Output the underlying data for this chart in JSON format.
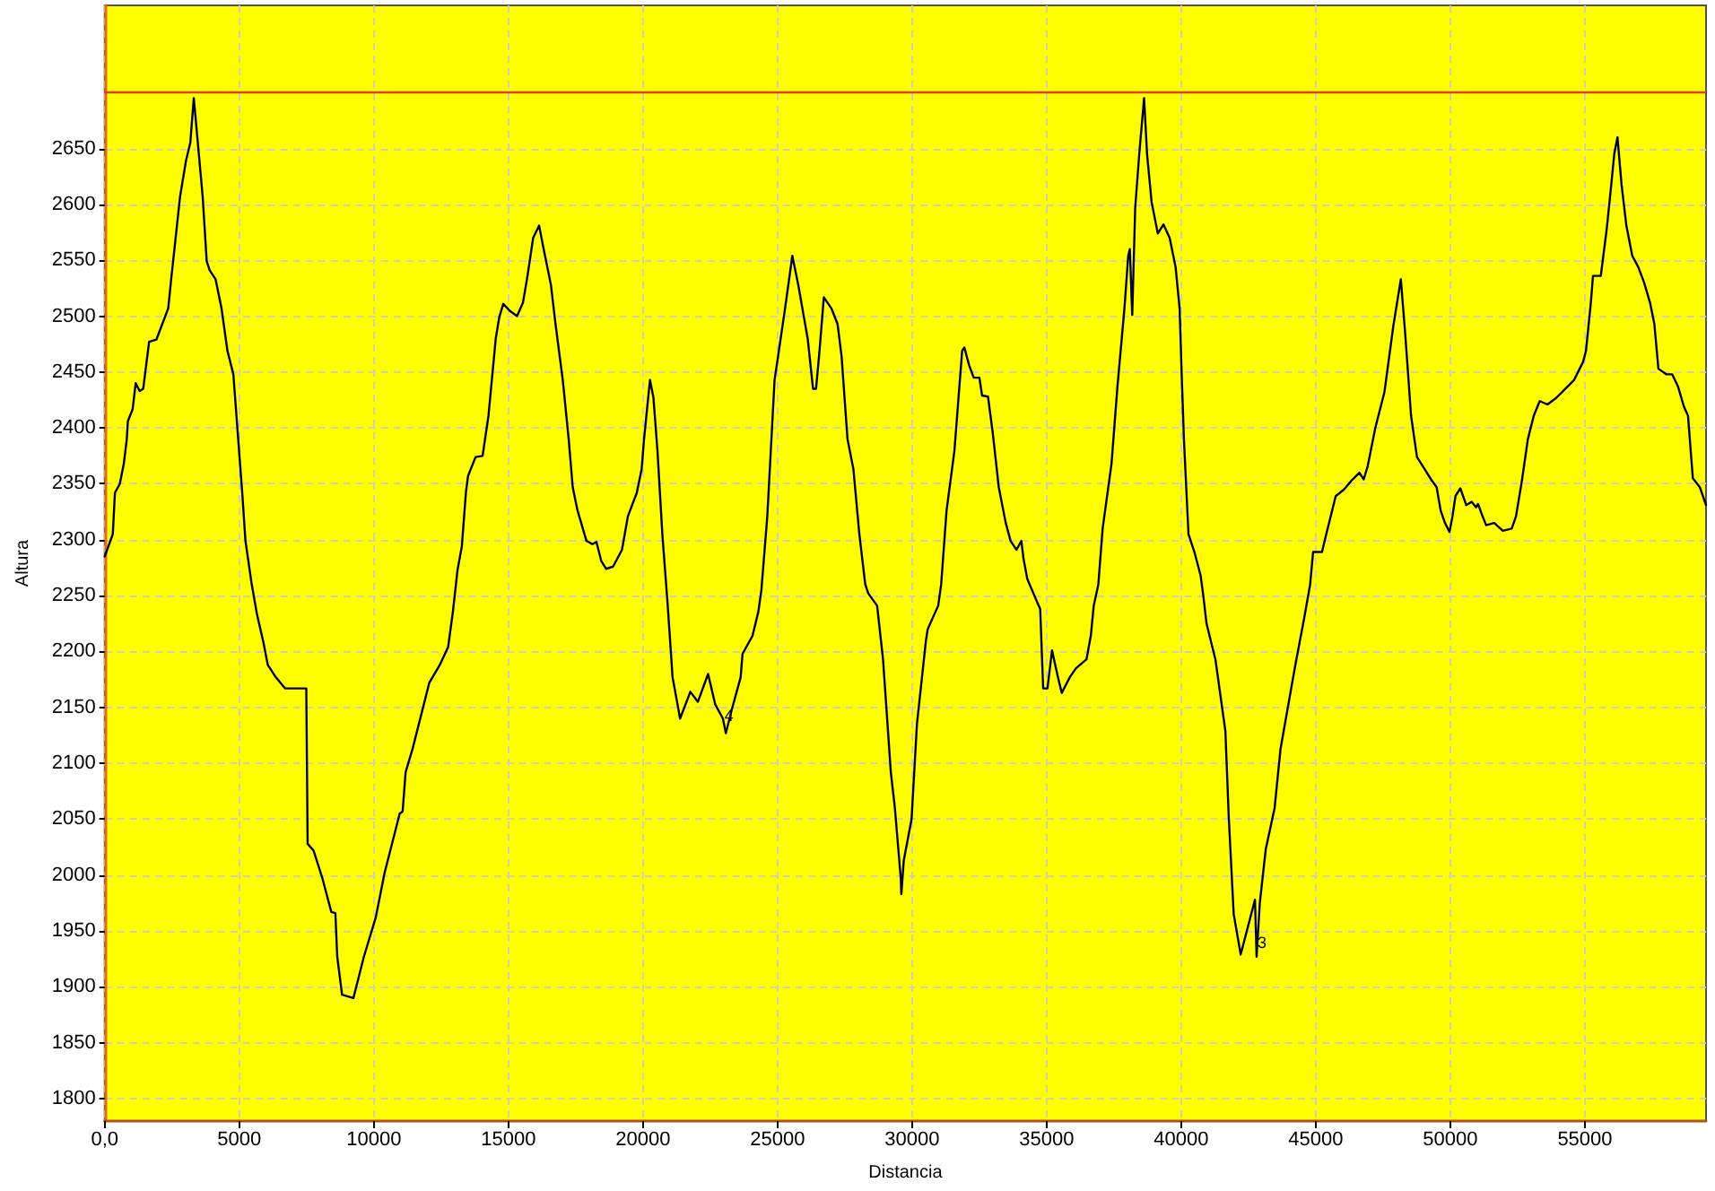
{
  "chart_data": {
    "type": "line",
    "xlabel": "Distancia",
    "ylabel": "Altura",
    "color": "#000033",
    "marker": "none",
    "line_style": "solid",
    "grid": true,
    "xlim": [
      0,
      59500
    ],
    "xticks": [
      {
        "value": 0,
        "label": "0,0"
      },
      5000,
      10000,
      15000,
      20000,
      25000,
      30000,
      35000,
      40000,
      45000,
      50000,
      55000
    ],
    "ylim": [
      1780,
      2778
    ],
    "yticks": [
      1800,
      1850,
      1900,
      1950,
      2000,
      2050,
      2100,
      2150,
      2200,
      2250,
      2300,
      2350,
      2400,
      2450,
      2500,
      2550,
      2600,
      2650
    ],
    "ref_lines": [
      {
        "axis": "y",
        "value": 2700,
        "color": "#e0401e"
      }
    ],
    "annotations": [
      {
        "text": "4",
        "x": 23200,
        "y": 2143
      },
      {
        "text": "3",
        "x": 43000,
        "y": 1940
      }
    ],
    "x": [
      0,
      300,
      380,
      560,
      710,
      820,
      860,
      1040,
      1150,
      1300,
      1430,
      1650,
      1920,
      2140,
      2360,
      2470,
      2800,
      3020,
      3180,
      3310,
      3460,
      3640,
      3790,
      3900,
      4120,
      4340,
      4560,
      4780,
      4960,
      5110,
      5230,
      5450,
      5660,
      5890,
      6060,
      6330,
      6700,
      7490,
      7540,
      7760,
      8090,
      8420,
      8570,
      8640,
      8820,
      9240,
      9630,
      10070,
      10400,
      10960,
      11070,
      11180,
      11440,
      12060,
      12450,
      12760,
      12940,
      13110,
      13270,
      13420,
      13500,
      13780,
      14040,
      14260,
      14530,
      14660,
      14810,
      15040,
      15320,
      15540,
      15690,
      15920,
      16140,
      16310,
      16580,
      16750,
      17020,
      17240,
      17390,
      17570,
      17900,
      18120,
      18270,
      18450,
      18630,
      18890,
      19220,
      19440,
      19770,
      19950,
      20040,
      20260,
      20390,
      20540,
      20720,
      20920,
      21100,
      21380,
      21760,
      22040,
      22420,
      22680,
      22970,
      23080,
      23300,
      23630,
      23700,
      24070,
      24290,
      24400,
      24620,
      24890,
      25020,
      25280,
      25550,
      25770,
      26120,
      26320,
      26430,
      26560,
      26720,
      27000,
      27230,
      27380,
      27600,
      27820,
      28040,
      28260,
      28370,
      28700,
      28920,
      29210,
      29360,
      29580,
      29600,
      29690,
      29980,
      30180,
      30510,
      30580,
      30970,
      31080,
      31280,
      31570,
      31860,
      31940,
      32120,
      32290,
      32500,
      32600,
      32820,
      33000,
      33220,
      33480,
      33660,
      33880,
      34060,
      34140,
      34280,
      34650,
      34760,
      34870,
      35030,
      35200,
      35420,
      35560,
      35860,
      36090,
      36480,
      36640,
      36750,
      36920,
      37080,
      37410,
      37630,
      37890,
      38030,
      38090,
      38180,
      38290,
      38440,
      38620,
      38730,
      38900,
      39130,
      39340,
      39570,
      39790,
      39940,
      40010,
      40100,
      40270,
      40490,
      40720,
      40820,
      40940,
      41270,
      41640,
      41770,
      41950,
      42210,
      42740,
      42800,
      42920,
      43140,
      43470,
      43690,
      44240,
      44570,
      44790,
      44900,
      45230,
      45390,
      45740,
      46050,
      46330,
      46620,
      46780,
      46930,
      47210,
      47550,
      47880,
      48160,
      48320,
      48540,
      48760,
      49050,
      49310,
      49490,
      49640,
      49800,
      49970,
      50080,
      50190,
      50370,
      50590,
      50790,
      50960,
      51030,
      51180,
      51330,
      51630,
      51950,
      52280,
      52440,
      52660,
      52880,
      53100,
      53320,
      53610,
      53940,
      54270,
      54600,
      54930,
      55040,
      55220,
      55300,
      55590,
      55810,
      55960,
      56090,
      56210,
      56360,
      56540,
      56760,
      56980,
      57200,
      57420,
      57580,
      57730,
      58020,
      58240,
      58460,
      58680,
      58830,
      59010,
      59270,
      59500
    ],
    "values": [
      2285,
      2305,
      2342,
      2350,
      2368,
      2390,
      2406,
      2417,
      2440,
      2433,
      2435,
      2477,
      2479,
      2493,
      2507,
      2533,
      2607,
      2639,
      2655,
      2695,
      2655,
      2607,
      2549,
      2541,
      2533,
      2507,
      2469,
      2448,
      2390,
      2342,
      2299,
      2262,
      2233,
      2209,
      2188,
      2178,
      2167,
      2167,
      2028,
      2022,
      1997,
      1967,
      1966,
      1927,
      1893,
      1890,
      1927,
      1962,
      2002,
      2055,
      2057,
      2092,
      2113,
      2172,
      2188,
      2204,
      2236,
      2273,
      2294,
      2342,
      2357,
      2374,
      2375,
      2411,
      2480,
      2499,
      2511,
      2505,
      2500,
      2512,
      2533,
      2570,
      2581,
      2560,
      2528,
      2493,
      2443,
      2390,
      2347,
      2326,
      2299,
      2296,
      2298,
      2281,
      2274,
      2276,
      2291,
      2321,
      2342,
      2363,
      2390,
      2443,
      2427,
      2379,
      2305,
      2241,
      2177,
      2140,
      2164,
      2155,
      2180,
      2153,
      2140,
      2127,
      2148,
      2177,
      2198,
      2214,
      2236,
      2255,
      2321,
      2443,
      2464,
      2507,
      2554,
      2528,
      2480,
      2435,
      2435,
      2469,
      2517,
      2507,
      2493,
      2464,
      2390,
      2363,
      2305,
      2260,
      2252,
      2241,
      2193,
      2092,
      2060,
      1997,
      1983,
      2013,
      2050,
      2135,
      2209,
      2220,
      2241,
      2260,
      2326,
      2379,
      2469,
      2472,
      2456,
      2445,
      2445,
      2429,
      2428,
      2395,
      2347,
      2315,
      2299,
      2291,
      2299,
      2283,
      2265,
      2244,
      2238,
      2167,
      2167,
      2201,
      2177,
      2163,
      2177,
      2185,
      2193,
      2214,
      2241,
      2260,
      2310,
      2368,
      2437,
      2507,
      2554,
      2560,
      2501,
      2597,
      2645,
      2695,
      2645,
      2602,
      2574,
      2582,
      2570,
      2544,
      2507,
      2453,
      2390,
      2305,
      2289,
      2268,
      2250,
      2225,
      2193,
      2129,
      2050,
      1965,
      1929,
      1978,
      1927,
      1975,
      2023,
      2060,
      2113,
      2188,
      2230,
      2260,
      2289,
      2289,
      2305,
      2339,
      2345,
      2353,
      2360,
      2354,
      2366,
      2400,
      2432,
      2491,
      2533,
      2485,
      2411,
      2374,
      2363,
      2353,
      2347,
      2326,
      2315,
      2307,
      2321,
      2339,
      2346,
      2331,
      2334,
      2329,
      2332,
      2322,
      2313,
      2315,
      2308,
      2310,
      2321,
      2353,
      2390,
      2411,
      2424,
      2421,
      2427,
      2435,
      2443,
      2459,
      2469,
      2512,
      2536,
      2536,
      2578,
      2613,
      2645,
      2660,
      2618,
      2581,
      2554,
      2544,
      2530,
      2512,
      2493,
      2453,
      2448,
      2448,
      2437,
      2419,
      2411,
      2355,
      2347,
      2331
    ]
  }
}
